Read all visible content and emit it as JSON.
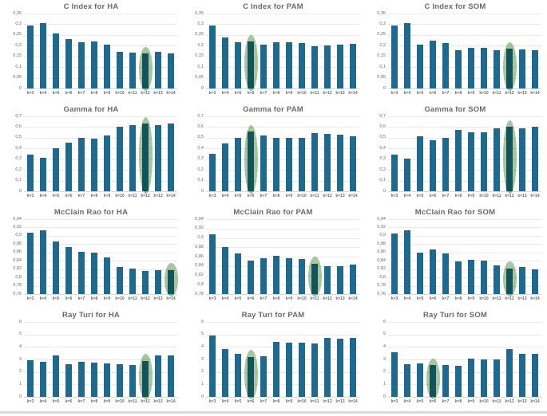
{
  "colors": {
    "bar": "#1d6a8e",
    "highlight": "rgba(143,185,138,0.8)",
    "title_text": "#6a6a6a",
    "tick_text": "#6a6a6a",
    "gridline": "#e9e9e9",
    "footer_rule": "#d9d9d9"
  },
  "chart_data": [
    {
      "type": "bar",
      "title": "C Index for HA",
      "categories": [
        "k=3",
        "k=4",
        "k=5",
        "k=6",
        "k=7",
        "k=8",
        "k=9",
        "k=10",
        "k=11",
        "k=12",
        "k=13",
        "k=14"
      ],
      "values": [
        0.295,
        0.305,
        0.257,
        0.232,
        0.215,
        0.218,
        0.205,
        0.172,
        0.168,
        0.163,
        0.17,
        0.163
      ],
      "ylim": [
        0,
        0.35
      ],
      "ytick_labels": [
        "0,35",
        "0,3",
        "0,25",
        "0,2",
        "0,15",
        "0,1",
        "0,05",
        "0"
      ],
      "highlight_k": "k=12",
      "grid": true,
      "legend": false
    },
    {
      "type": "bar",
      "title": "C Index for PAM",
      "categories": [
        "k=3",
        "k=4",
        "k=5",
        "k=6",
        "k=7",
        "k=8",
        "k=9",
        "k=10",
        "k=11",
        "k=12",
        "k=13",
        "k=14"
      ],
      "values": [
        0.293,
        0.24,
        0.216,
        0.218,
        0.205,
        0.217,
        0.216,
        0.214,
        0.197,
        0.202,
        0.204,
        0.21
      ],
      "ylim": [
        0,
        0.35
      ],
      "ytick_labels": [
        "0,35",
        "0,3",
        "0,25",
        "0,2",
        "0,15",
        "0,1",
        "0,05",
        "0"
      ],
      "highlight_k": "k=6",
      "grid": true,
      "legend": false
    },
    {
      "type": "bar",
      "title": "C Index for SOM",
      "categories": [
        "k=3",
        "k=4",
        "k=5",
        "k=6",
        "k=7",
        "k=8",
        "k=9",
        "k=10",
        "k=11",
        "k=12",
        "k=13",
        "k=14"
      ],
      "values": [
        0.293,
        0.307,
        0.204,
        0.224,
        0.213,
        0.179,
        0.19,
        0.19,
        0.177,
        0.186,
        0.182,
        0.177
      ],
      "ylim": [
        0,
        0.35
      ],
      "ytick_labels": [
        "0,35",
        "0,3",
        "0,25",
        "0,2",
        "0,15",
        "0,1",
        "0,05",
        "0"
      ],
      "highlight_k": "k=12",
      "grid": true,
      "legend": false
    },
    {
      "type": "bar",
      "title": "Gamma for HA",
      "categories": [
        "k=3",
        "k=4",
        "k=5",
        "k=6",
        "k=7",
        "k=8",
        "k=9",
        "k=10",
        "k=11",
        "k=12",
        "k=13",
        "k=14"
      ],
      "values": [
        0.34,
        0.315,
        0.4,
        0.455,
        0.5,
        0.49,
        0.525,
        0.6,
        0.62,
        0.63,
        0.62,
        0.635
      ],
      "ylim": [
        0,
        0.7
      ],
      "ytick_labels": [
        "0,7",
        "0,6",
        "0,5",
        "0,4",
        "0,3",
        "0,2",
        "0,1",
        "0"
      ],
      "highlight_k": "k=12",
      "grid": true,
      "legend": false
    },
    {
      "type": "bar",
      "title": "Gamma for PAM",
      "categories": [
        "k=3",
        "k=4",
        "k=5",
        "k=6",
        "k=7",
        "k=8",
        "k=9",
        "k=10",
        "k=11",
        "k=12",
        "k=13",
        "k=14"
      ],
      "values": [
        0.35,
        0.45,
        0.497,
        0.555,
        0.52,
        0.497,
        0.5,
        0.5,
        0.545,
        0.54,
        0.53,
        0.515
      ],
      "ylim": [
        0,
        0.7
      ],
      "ytick_labels": [
        "0,7",
        "0,6",
        "0,5",
        "0,4",
        "0,3",
        "0,2",
        "0,1",
        "0"
      ],
      "highlight_k": "k=6",
      "grid": true,
      "legend": false
    },
    {
      "type": "bar",
      "title": "Gamma for SOM",
      "categories": [
        "k=3",
        "k=4",
        "k=5",
        "k=6",
        "k=7",
        "k=8",
        "k=9",
        "k=10",
        "k=11",
        "k=12",
        "k=13",
        "k=14"
      ],
      "values": [
        0.345,
        0.305,
        0.515,
        0.475,
        0.5,
        0.57,
        0.55,
        0.548,
        0.59,
        0.6,
        0.585,
        0.6
      ],
      "ylim": [
        0,
        0.7
      ],
      "ytick_labels": [
        "0,7",
        "0,6",
        "0,5",
        "0,4",
        "0,3",
        "0,2",
        "0,1",
        "0"
      ],
      "highlight_k": "k=12",
      "grid": true,
      "legend": false
    },
    {
      "type": "bar",
      "title": "McClain Rao for HA",
      "categories": [
        "k=3",
        "k=4",
        "k=5",
        "k=6",
        "k=7",
        "k=8",
        "k=9",
        "k=10",
        "k=11",
        "k=12",
        "k=13",
        "k=14"
      ],
      "values": [
        0.907,
        0.913,
        0.887,
        0.873,
        0.861,
        0.86,
        0.849,
        0.826,
        0.821,
        0.816,
        0.817,
        0.818
      ],
      "ylim": [
        0.76,
        0.94
      ],
      "ytick_labels": [
        "0,94",
        "0,92",
        "0,9",
        "0,88",
        "0,86",
        "0,84",
        "0,82",
        "0,8",
        "0,78",
        "0,76"
      ],
      "highlight_k": "k=14",
      "grid": true,
      "legend": false
    },
    {
      "type": "bar",
      "title": "McClain Rao for PAM",
      "categories": [
        "k=3",
        "k=4",
        "k=5",
        "k=6",
        "k=7",
        "k=8",
        "k=9",
        "k=10",
        "k=11",
        "k=12",
        "k=13",
        "k=14"
      ],
      "values": [
        0.907,
        0.88,
        0.866,
        0.851,
        0.856,
        0.862,
        0.857,
        0.855,
        0.845,
        0.84,
        0.84,
        0.843
      ],
      "ylim": [
        0.78,
        0.94
      ],
      "ytick_labels": [
        "0,94",
        "0,92",
        "0,9",
        "0,88",
        "0,86",
        "0,84",
        "0,82",
        "0,8",
        "0,78"
      ],
      "highlight_k": "k=11",
      "grid": true,
      "legend": false
    },
    {
      "type": "bar",
      "title": "McClain Rao for SOM",
      "categories": [
        "k=3",
        "k=4",
        "k=5",
        "k=6",
        "k=7",
        "k=8",
        "k=9",
        "k=10",
        "k=11",
        "k=12",
        "k=13",
        "k=14"
      ],
      "values": [
        0.906,
        0.914,
        0.86,
        0.867,
        0.858,
        0.839,
        0.843,
        0.84,
        0.829,
        0.822,
        0.825,
        0.82
      ],
      "ylim": [
        0.76,
        0.94
      ],
      "ytick_labels": [
        "0,94",
        "0,92",
        "0,9",
        "0,88",
        "0,86",
        "0,84",
        "0,82",
        "0,8",
        "0,78",
        "0,76"
      ],
      "highlight_k": "k=12",
      "grid": true,
      "legend": false
    },
    {
      "type": "bar",
      "title": "Ray Turi for HA",
      "categories": [
        "k=3",
        "k=4",
        "k=5",
        "k=6",
        "k=7",
        "k=8",
        "k=9",
        "k=10",
        "k=11",
        "k=12",
        "k=13",
        "k=14"
      ],
      "values": [
        2.95,
        2.8,
        3.35,
        2.6,
        2.8,
        2.72,
        2.65,
        2.6,
        2.57,
        2.9,
        3.35,
        3.3
      ],
      "ylim": [
        0,
        6
      ],
      "ytick_labels": [
        "6",
        "5",
        "4",
        "3",
        "2",
        "1",
        "0"
      ],
      "highlight_k": "k=12",
      "grid": true,
      "legend": false
    },
    {
      "type": "bar",
      "title": "Ray Turi for PAM",
      "categories": [
        "k=3",
        "k=4",
        "k=5",
        "k=6",
        "k=7",
        "k=8",
        "k=9",
        "k=10",
        "k=11",
        "k=12",
        "k=13",
        "k=14"
      ],
      "values": [
        4.9,
        3.8,
        3.45,
        3.2,
        3.25,
        4.4,
        4.35,
        4.35,
        4.25,
        4.7,
        4.65,
        4.75
      ],
      "ylim": [
        0,
        6
      ],
      "ytick_labels": [
        "6",
        "5",
        "4",
        "3",
        "2",
        "1",
        "0"
      ],
      "highlight_k": "k=6",
      "grid": true,
      "legend": false
    },
    {
      "type": "bar",
      "title": "Ray Turi for SOM",
      "categories": [
        "k=3",
        "k=4",
        "k=5",
        "k=6",
        "k=7",
        "k=8",
        "k=9",
        "k=10",
        "k=11",
        "k=12",
        "k=13",
        "k=14"
      ],
      "values": [
        3.6,
        2.62,
        2.68,
        2.55,
        2.57,
        2.5,
        3.08,
        3.02,
        3.0,
        3.82,
        3.45,
        3.42
      ],
      "ylim": [
        0,
        6
      ],
      "ytick_labels": [
        "6",
        "5",
        "4",
        "3",
        "2",
        "1",
        "0"
      ],
      "highlight_k": "k=6",
      "grid": true,
      "legend": false
    }
  ]
}
